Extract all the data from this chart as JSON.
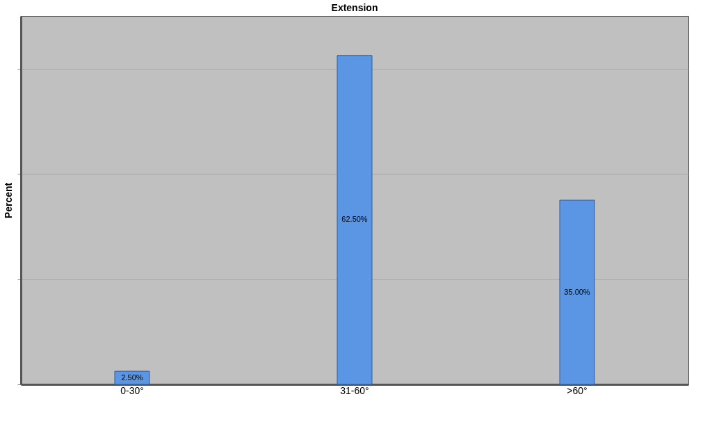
{
  "chart_data": {
    "type": "bar",
    "title": "Extension",
    "ylabel": "Percent",
    "categories": [
      "0-30°",
      "31-60°",
      ">60°"
    ],
    "values": [
      2.5,
      62.5,
      35
    ],
    "value_labels": [
      "2.50%",
      "62.50%",
      "35.00%"
    ],
    "color": "#5a96e3",
    "ylim": [
      0,
      70
    ],
    "yticks": [
      {
        "value": 0,
        "label": null
      },
      {
        "value": 20,
        "label": null
      },
      {
        "value": 40,
        "label": null
      },
      {
        "value": 60,
        "label": null
      }
    ],
    "grid": "y"
  }
}
